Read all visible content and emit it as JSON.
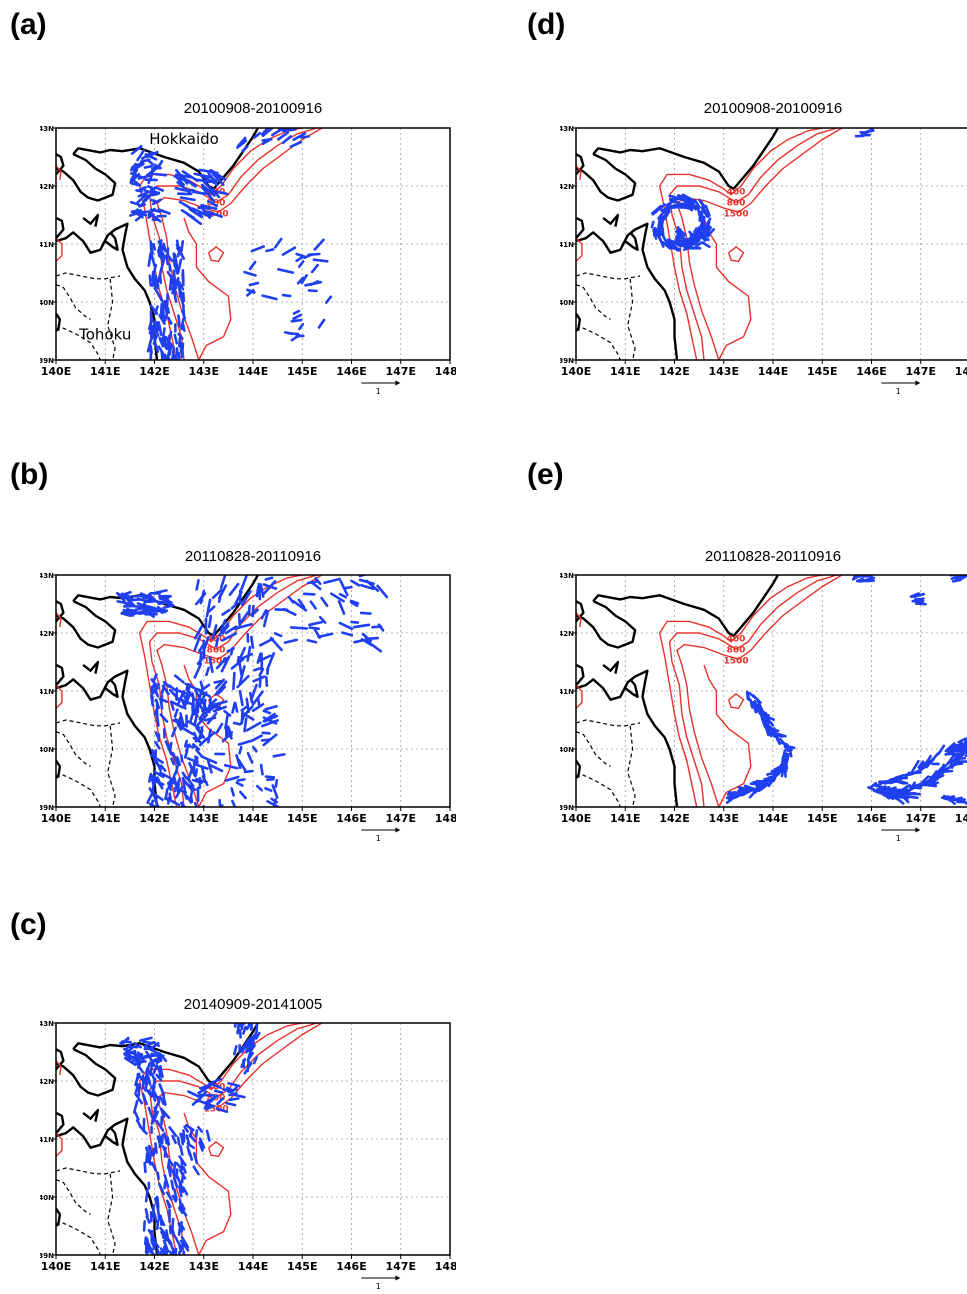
{
  "figure": {
    "panels": [
      {
        "id": "a",
        "label": "(a)",
        "title": "20100908-20100916",
        "places": [
          "Hokkaido",
          "Tohoku"
        ],
        "vectors": "dense-nw"
      },
      {
        "id": "b",
        "label": "(b)",
        "title": "20110828-20110916",
        "places": [],
        "vectors": "dense-all"
      },
      {
        "id": "c",
        "label": "(c)",
        "title": "20140909-20141005",
        "places": [],
        "vectors": "coastal"
      },
      {
        "id": "d",
        "label": "(d)",
        "title": "20100908-20100916",
        "places": [],
        "vectors": "eddy"
      },
      {
        "id": "e",
        "label": "(e)",
        "title": "20110828-20110916",
        "places": [],
        "vectors": "offshore"
      }
    ],
    "lon_ticks": [
      "140E",
      "141E",
      "142E",
      "143E",
      "144E",
      "145E",
      "146E",
      "147E",
      "148E"
    ],
    "lat_ticks": [
      "39N",
      "40N",
      "41N",
      "42N",
      "43N"
    ],
    "contour_labels": [
      "400",
      "800",
      "1500"
    ],
    "scale_label": "1",
    "colors": {
      "coast": "#000000",
      "contour": "#e8312b",
      "vector": "#1f3ff0",
      "grid": "#9a9a9a"
    }
  }
}
